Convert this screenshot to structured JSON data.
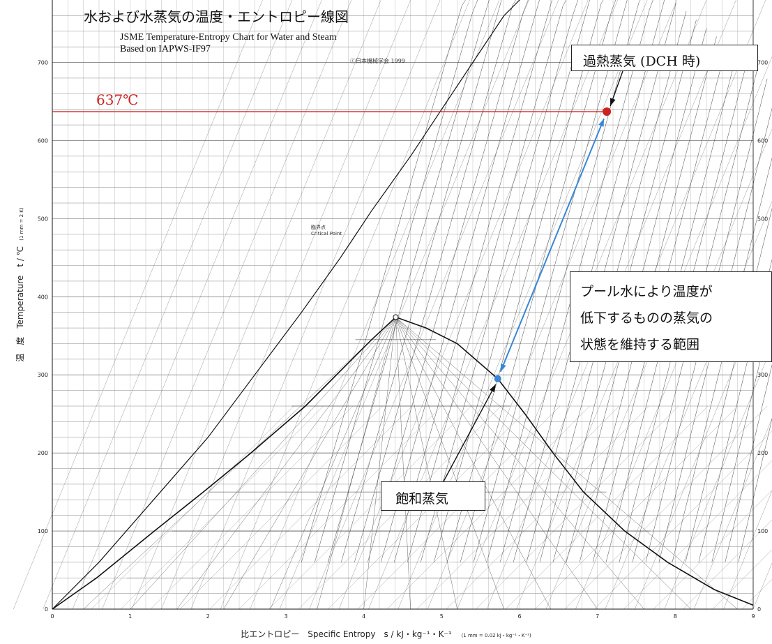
{
  "chart_data": {
    "type": "line",
    "title": "水および水蒸気の温度・エントロピー線図",
    "subtitle_en": "JSME Temperature-Entropy Chart for Water and Steam",
    "subtitle_basis": "Based on IAPWS-IF97",
    "copyright": "ⓒ日本機械学会 1999",
    "xlabel": "比エントロピー　Specific Entropy　s / kJ・kg⁻¹・K⁻¹",
    "xlabel_scale": "(1 mm = 0.02 kJ・kg⁻¹・K⁻¹)",
    "ylabel": "温　度　Temperature　t / ℃",
    "ylabel_scale": "(1 mm = 2 K)",
    "xlim": [
      0,
      9
    ],
    "ylim": [
      0,
      780
    ],
    "x_ticks": [
      "0",
      "1",
      "2",
      "3",
      "4",
      "5",
      "6",
      "7",
      "8",
      "9"
    ],
    "y_ticks": [
      "0",
      "100",
      "200",
      "300",
      "400",
      "500",
      "600",
      "700"
    ],
    "critical_point": {
      "label_jp": "臨界点",
      "label_en": "Critical Point",
      "s": 4.41,
      "t": 373.9
    },
    "saturation_dome": {
      "liquid_line": {
        "s": [
          0,
          0.57,
          1.31,
          1.94,
          2.55,
          3.25,
          3.5,
          3.85,
          4.1,
          4.41
        ],
        "t": [
          0,
          40,
          100,
          150,
          200,
          260,
          285,
          320,
          345,
          373.9
        ]
      },
      "vapor_line": {
        "s": [
          4.41,
          4.8,
          5.2,
          5.72,
          6.07,
          6.43,
          6.82,
          7.35,
          7.9,
          8.5,
          9.0
        ],
        "t": [
          373.9,
          360,
          340,
          295,
          250,
          200,
          150,
          100,
          60,
          25,
          5
        ]
      }
    },
    "markers": [
      {
        "name": "過熱蒸気 (DCH 時)",
        "s": 7.12,
        "t": 637,
        "color": "#cc2222"
      },
      {
        "name": "飽和蒸気",
        "s": 5.72,
        "t": 295,
        "color": "#3a86d4"
      }
    ],
    "temperature_line": {
      "label": "637℃",
      "t": 637,
      "color": "#cc2222"
    }
  },
  "annotations": {
    "superheated": "過熱蒸気 (DCH 時)",
    "saturated": "飽和蒸気",
    "range_line1": "プール水により温度が",
    "range_line2": "低下するものの蒸気の",
    "range_line3": "状態を維持する範囲",
    "temp_label": "637℃"
  },
  "colors": {
    "accent_red": "#cc2222",
    "accent_blue": "#3a86d4",
    "grid": "#222222"
  }
}
